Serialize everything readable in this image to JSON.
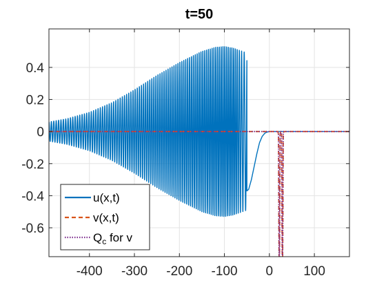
{
  "chart_data": {
    "type": "line",
    "title": "t=50",
    "xlabel": "",
    "ylabel": "",
    "xlim": [
      -490,
      178
    ],
    "ylim": [
      -0.78,
      0.64
    ],
    "x_ticks": [
      -400,
      -300,
      -200,
      -100,
      0,
      100
    ],
    "x_tick_labels": [
      "-400",
      "-300",
      "-200",
      "-100",
      "0",
      "100"
    ],
    "y_ticks": [
      0.4,
      0.2,
      0,
      -0.2,
      -0.4,
      -0.6
    ],
    "y_tick_labels": [
      "0.4",
      "0.2",
      "0",
      "-0.2",
      "-0.4",
      "-0.6"
    ],
    "grid": true,
    "legend_position": "bottom-left",
    "series": [
      {
        "name": "u(x,t)",
        "color": "#0072BD",
        "style": "solid",
        "description": "oscillatory wave packet",
        "envelope_x": [
          -490,
          -450,
          -400,
          -350,
          -300,
          -250,
          -200,
          -150,
          -120,
          -100,
          -80,
          -70,
          -60,
          -50
        ],
        "envelope_amp": [
          0.06,
          0.08,
          0.12,
          0.18,
          0.26,
          0.35,
          0.43,
          0.5,
          0.525,
          0.53,
          0.52,
          0.51,
          0.5,
          0.49
        ],
        "tail_x": [
          -50,
          -46,
          -40,
          -34,
          -28,
          -22,
          -16,
          -10,
          -5,
          0,
          20,
          178
        ],
        "tail_y": [
          -0.37,
          -0.36,
          -0.3,
          -0.22,
          -0.14,
          -0.07,
          -0.03,
          -0.01,
          -0.003,
          0,
          0,
          0
        ]
      },
      {
        "name": "v(x,t)",
        "color": "#D95319",
        "style": "dashed",
        "baseline": 0,
        "spikes": [
          {
            "center": 22,
            "min": -0.78
          },
          {
            "center": 29,
            "min": -0.78
          }
        ]
      },
      {
        "name": "Q_c for v",
        "color": "#7E2F8E",
        "style": "dotted",
        "baseline": 0,
        "spikes": [
          {
            "center": 22,
            "min": -0.78
          },
          {
            "center": 29,
            "min": -0.78
          }
        ]
      }
    ]
  },
  "legend": {
    "items": [
      {
        "label": "u(x,t)",
        "sub": "",
        "tail": ""
      },
      {
        "label": "v(x,t)",
        "sub": "",
        "tail": ""
      },
      {
        "label": "Q",
        "sub": "c",
        "tail": " for v"
      }
    ]
  }
}
